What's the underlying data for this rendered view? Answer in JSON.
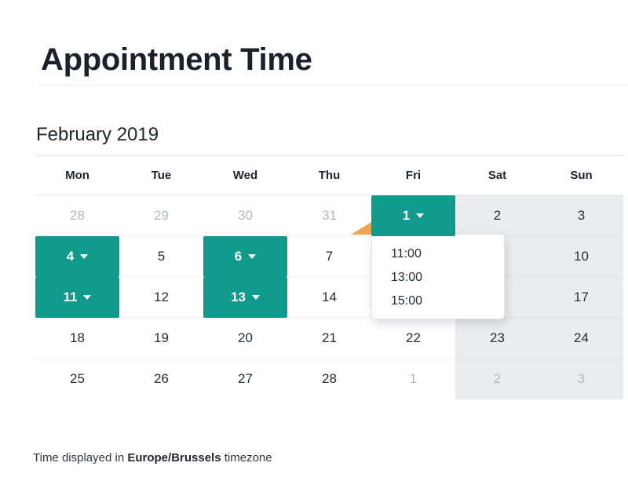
{
  "page": {
    "title": "Appointment Time"
  },
  "calendar": {
    "month_label": "February 2019",
    "weekdays": [
      "Mon",
      "Tue",
      "Wed",
      "Thu",
      "Fri",
      "Sat",
      "Sun"
    ],
    "rows": [
      [
        {
          "label": "28",
          "state": "outside"
        },
        {
          "label": "29",
          "state": "outside"
        },
        {
          "label": "30",
          "state": "outside"
        },
        {
          "label": "31",
          "state": "outside"
        },
        {
          "label": "1",
          "state": "available"
        },
        {
          "label": "2",
          "state": "day"
        },
        {
          "label": "3",
          "state": "day"
        }
      ],
      [
        {
          "label": "4",
          "state": "available"
        },
        {
          "label": "5",
          "state": "day"
        },
        {
          "label": "6",
          "state": "available"
        },
        {
          "label": "7",
          "state": "day"
        },
        {
          "label": "",
          "state": "covered"
        },
        {
          "label": "",
          "state": "covered"
        },
        {
          "label": "10",
          "state": "day"
        }
      ],
      [
        {
          "label": "11",
          "state": "available"
        },
        {
          "label": "12",
          "state": "day"
        },
        {
          "label": "13",
          "state": "available"
        },
        {
          "label": "14",
          "state": "day"
        },
        {
          "label": "",
          "state": "covered"
        },
        {
          "label": "",
          "state": "covered"
        },
        {
          "label": "17",
          "state": "day"
        }
      ],
      [
        {
          "label": "18",
          "state": "day"
        },
        {
          "label": "19",
          "state": "day"
        },
        {
          "label": "20",
          "state": "day"
        },
        {
          "label": "21",
          "state": "day"
        },
        {
          "label": "22",
          "state": "day"
        },
        {
          "label": "23",
          "state": "day"
        },
        {
          "label": "24",
          "state": "day"
        }
      ],
      [
        {
          "label": "25",
          "state": "day"
        },
        {
          "label": "26",
          "state": "day"
        },
        {
          "label": "27",
          "state": "day"
        },
        {
          "label": "28",
          "state": "day"
        },
        {
          "label": "1",
          "state": "outside"
        },
        {
          "label": "2",
          "state": "outside"
        },
        {
          "label": "3",
          "state": "outside"
        }
      ]
    ]
  },
  "popup": {
    "for_day": "1",
    "times": [
      "11:00",
      "13:00",
      "15:00"
    ]
  },
  "footer": {
    "prefix": "Time displayed in ",
    "timezone": "Europe/Brussels",
    "suffix": " timezone"
  },
  "colors": {
    "accent_teal": "#0F9A8D",
    "marker_orange": "#F0A64C",
    "weekend_bg": "#E9EDEF",
    "muted_text": "#B3BAC1"
  }
}
